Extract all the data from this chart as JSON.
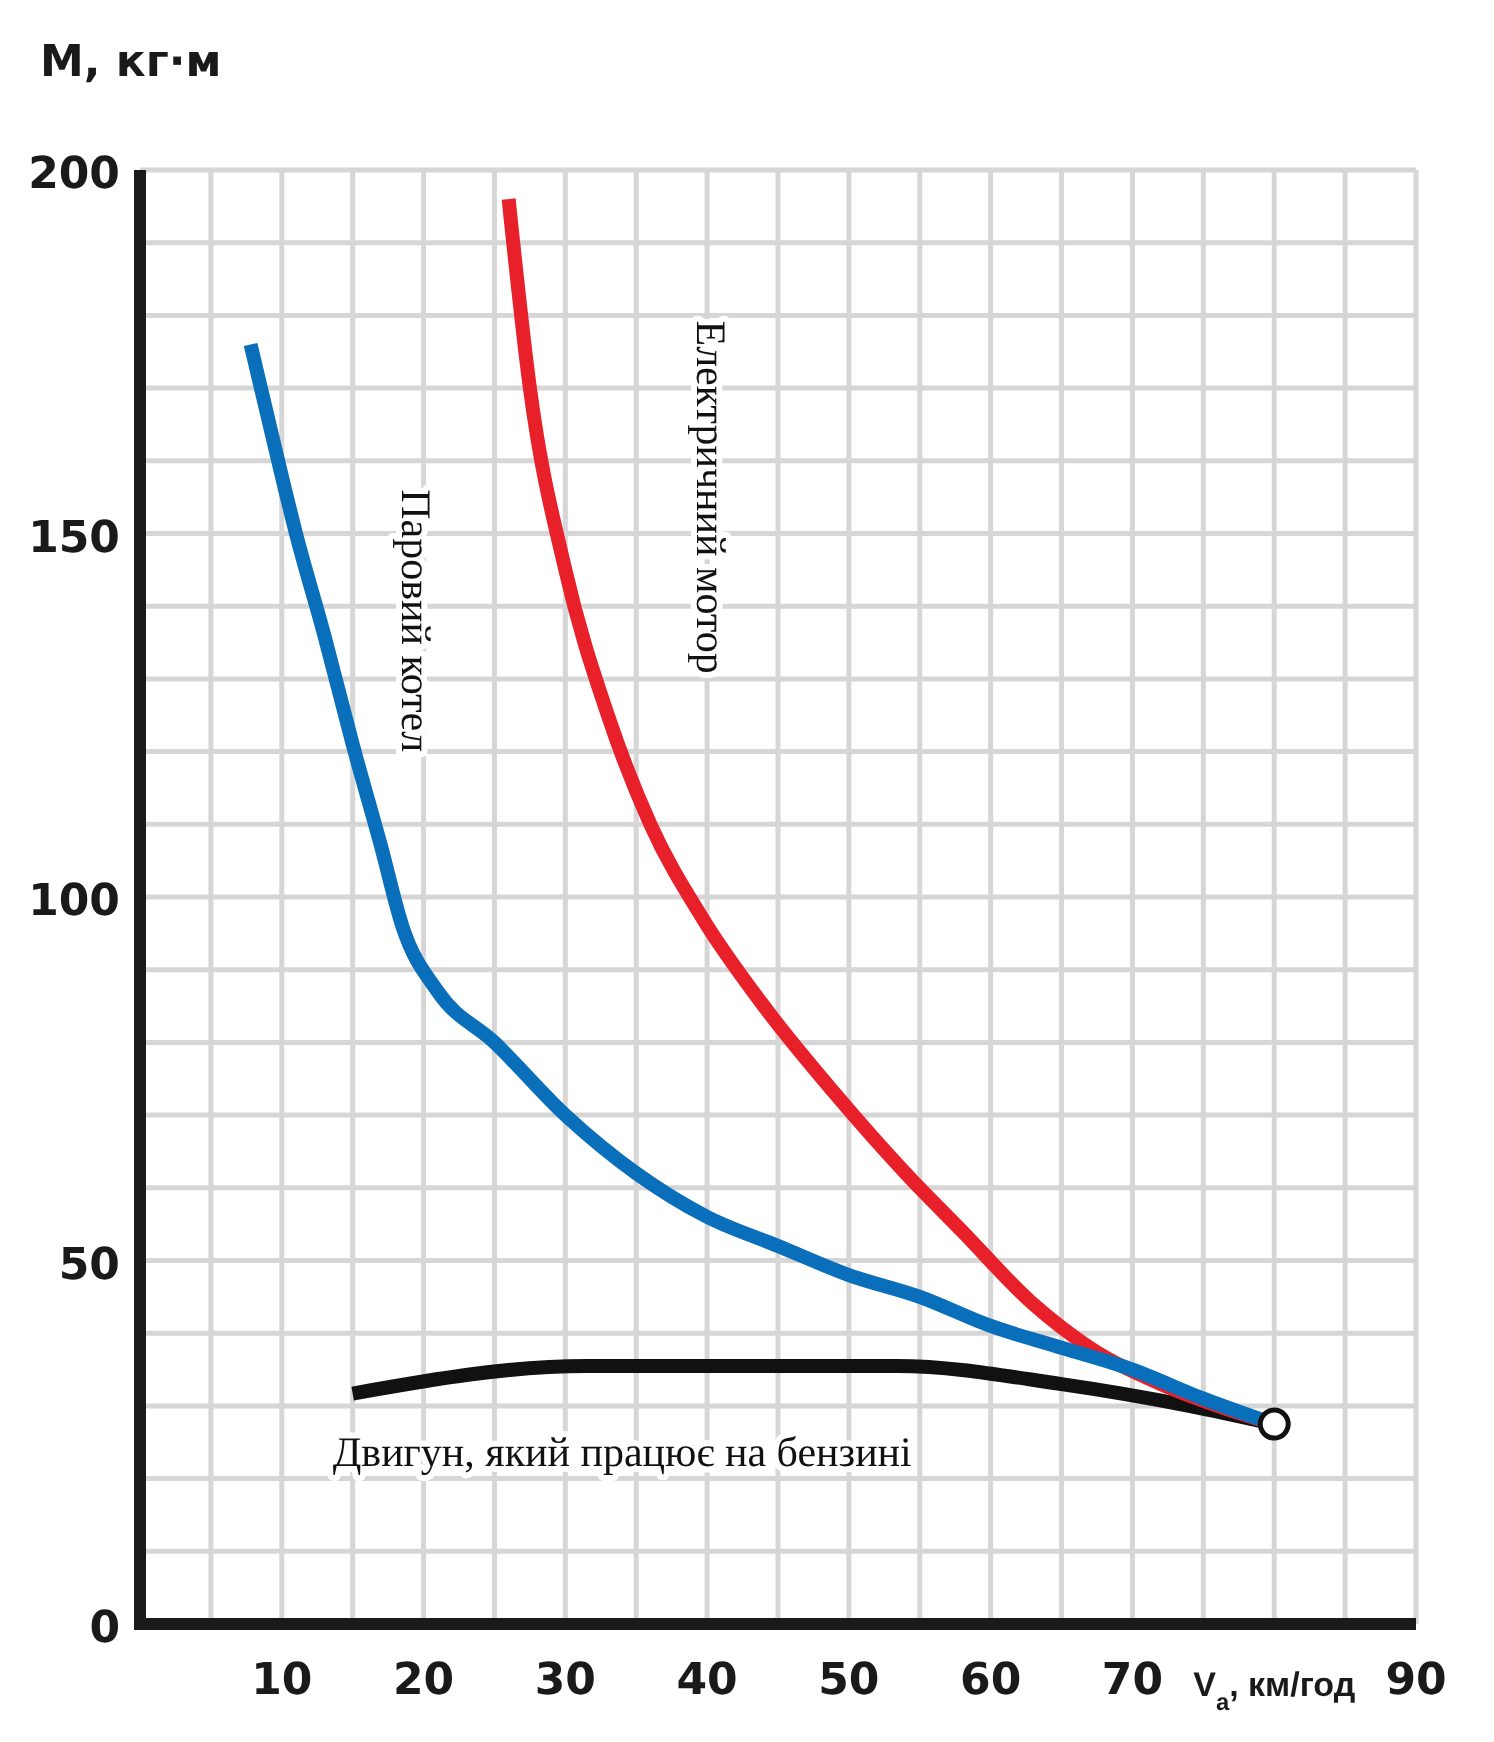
{
  "chart_data": {
    "type": "line",
    "xlabel": "V$_{a}$, км/год",
    "ylabel": "M, кг·м",
    "xlim": [
      0,
      90
    ],
    "ylim": [
      0,
      200
    ],
    "xticks": [
      {
        "value": 0,
        "label": null
      },
      {
        "value": 5,
        "label": null
      },
      10,
      {
        "value": 15,
        "label": null
      },
      20,
      {
        "value": 25,
        "label": null
      },
      30,
      {
        "value": 35,
        "label": null
      },
      40,
      {
        "value": 45,
        "label": null
      },
      50,
      {
        "value": 55,
        "label": null
      },
      60,
      {
        "value": 65,
        "label": null
      },
      70,
      {
        "value": 75,
        "label": null
      },
      {
        "value": 80,
        "label": null
      },
      {
        "value": 85,
        "label": null
      },
      90
    ],
    "yticks": [
      0,
      {
        "value": 10,
        "label": null
      },
      {
        "value": 20,
        "label": null
      },
      {
        "value": 30,
        "label": null
      },
      {
        "value": 40,
        "label": null
      },
      50,
      {
        "value": 60,
        "label": null
      },
      {
        "value": 70,
        "label": null
      },
      {
        "value": 80,
        "label": null
      },
      {
        "value": 90,
        "label": null
      },
      100,
      {
        "value": 110,
        "label": null
      },
      {
        "value": 120,
        "label": null
      },
      {
        "value": 130,
        "label": null
      },
      {
        "value": 140,
        "label": null
      },
      150,
      {
        "value": 160,
        "label": null
      },
      {
        "value": 170,
        "label": null
      },
      {
        "value": 180,
        "label": null
      },
      {
        "value": 190,
        "label": null
      },
      200
    ],
    "grid": true,
    "legend": false,
    "line_style": "solid",
    "marker": "none",
    "series": [
      {
        "name": "Паровий котел",
        "color": "#0a6fba",
        "x": [
          7.8,
          9.5,
          11,
          13,
          15,
          17,
          18.5,
          21,
          25,
          30,
          35,
          40,
          45,
          50,
          55,
          60,
          65,
          70,
          75,
          80
        ],
        "values": [
          176,
          162,
          150,
          136,
          121,
          107,
          96,
          87,
          80,
          70,
          62,
          56,
          52,
          48,
          45,
          41,
          38,
          35,
          31,
          27.5
        ]
      },
      {
        "name": "Електричний мотор",
        "color": "#e8202a",
        "x": [
          26,
          27.5,
          30,
          33,
          36,
          39.7,
          44,
          49,
          54,
          58,
          63,
          67,
          72,
          76,
          80
        ],
        "values": [
          196,
          170,
          145,
          125,
          110,
          97,
          85,
          73,
          62,
          54,
          44,
          38,
          33,
          30,
          27.5
        ]
      },
      {
        "name": "Двигун, який працює на бензині",
        "color": "#111111",
        "x": [
          15,
          31.5,
          39.7,
          53.4,
          65,
          74,
          80
        ],
        "values": [
          31.7,
          35.5,
          35.5,
          35.5,
          33,
          30,
          27.5
        ]
      },
      {
        "type": "scatter",
        "marker": "circle",
        "color": "#111111",
        "x": [
          80
        ],
        "values": [
          27.5
        ]
      }
    ]
  }
}
